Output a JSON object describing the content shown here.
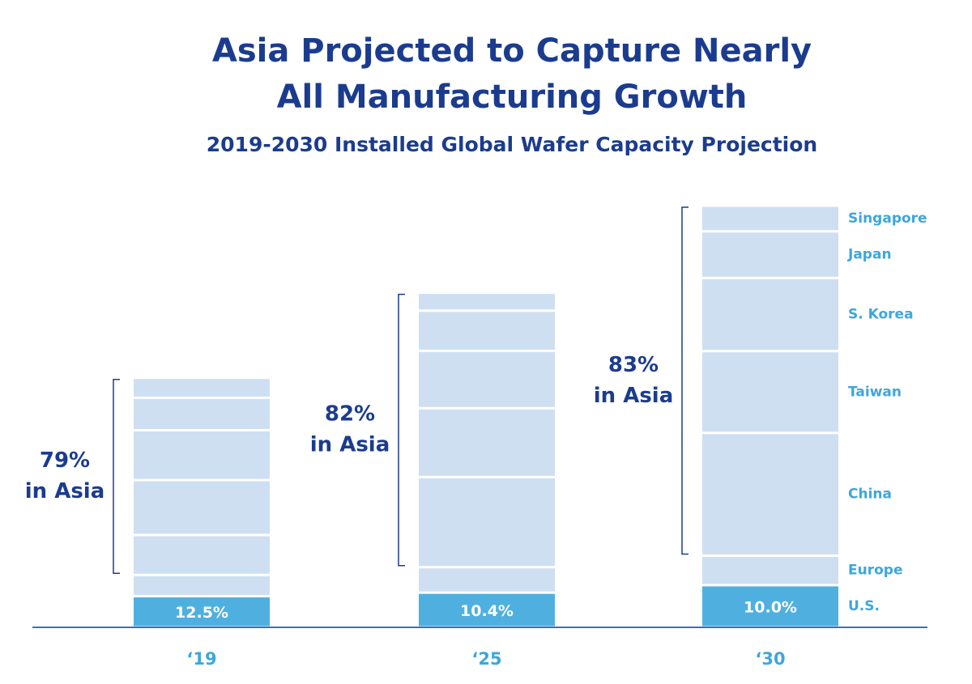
{
  "chart_data": {
    "type": "stacked_bar",
    "title": [
      "Asia Projected to Capture Nearly",
      "All Manufacturing Growth"
    ],
    "subtitle": "2019-2030 Installed Global Wafer Capacity Projection",
    "categories": [
      "‘19",
      "‘25",
      "‘30"
    ],
    "series": [
      {
        "name": "U.S.",
        "color": "#4fb0e0",
        "values": [
          12.5,
          13.9,
          16.9
        ]
      },
      {
        "name": "Europe",
        "color": "#cfdff2",
        "values": [
          8.5,
          10.2,
          11.8
        ]
      },
      {
        "name": "China",
        "color": "#cfdff2",
        "values": [
          16,
          36.1,
          49.2
        ]
      },
      {
        "name": "Taiwan",
        "color": "#cfdff2",
        "values": [
          22,
          27.6,
          32.8
        ]
      },
      {
        "name": "S. Korea",
        "color": "#cfdff2",
        "values": [
          20,
          23.0,
          29.3
        ]
      },
      {
        "name": "Japan",
        "color": "#cfdff2",
        "values": [
          13,
          16.1,
          18.7
        ]
      },
      {
        "name": "Singapore",
        "color": "#cfdff2",
        "values": [
          8,
          7.2,
          10.3
        ]
      }
    ],
    "us_share_labels": [
      "12.5%",
      "10.4%",
      "10.0%"
    ],
    "asia_labels": [
      [
        "79%",
        "in Asia"
      ],
      [
        "82%",
        "in Asia"
      ],
      [
        "83%",
        "in Asia"
      ]
    ],
    "ylim": [
      0,
      175
    ]
  }
}
